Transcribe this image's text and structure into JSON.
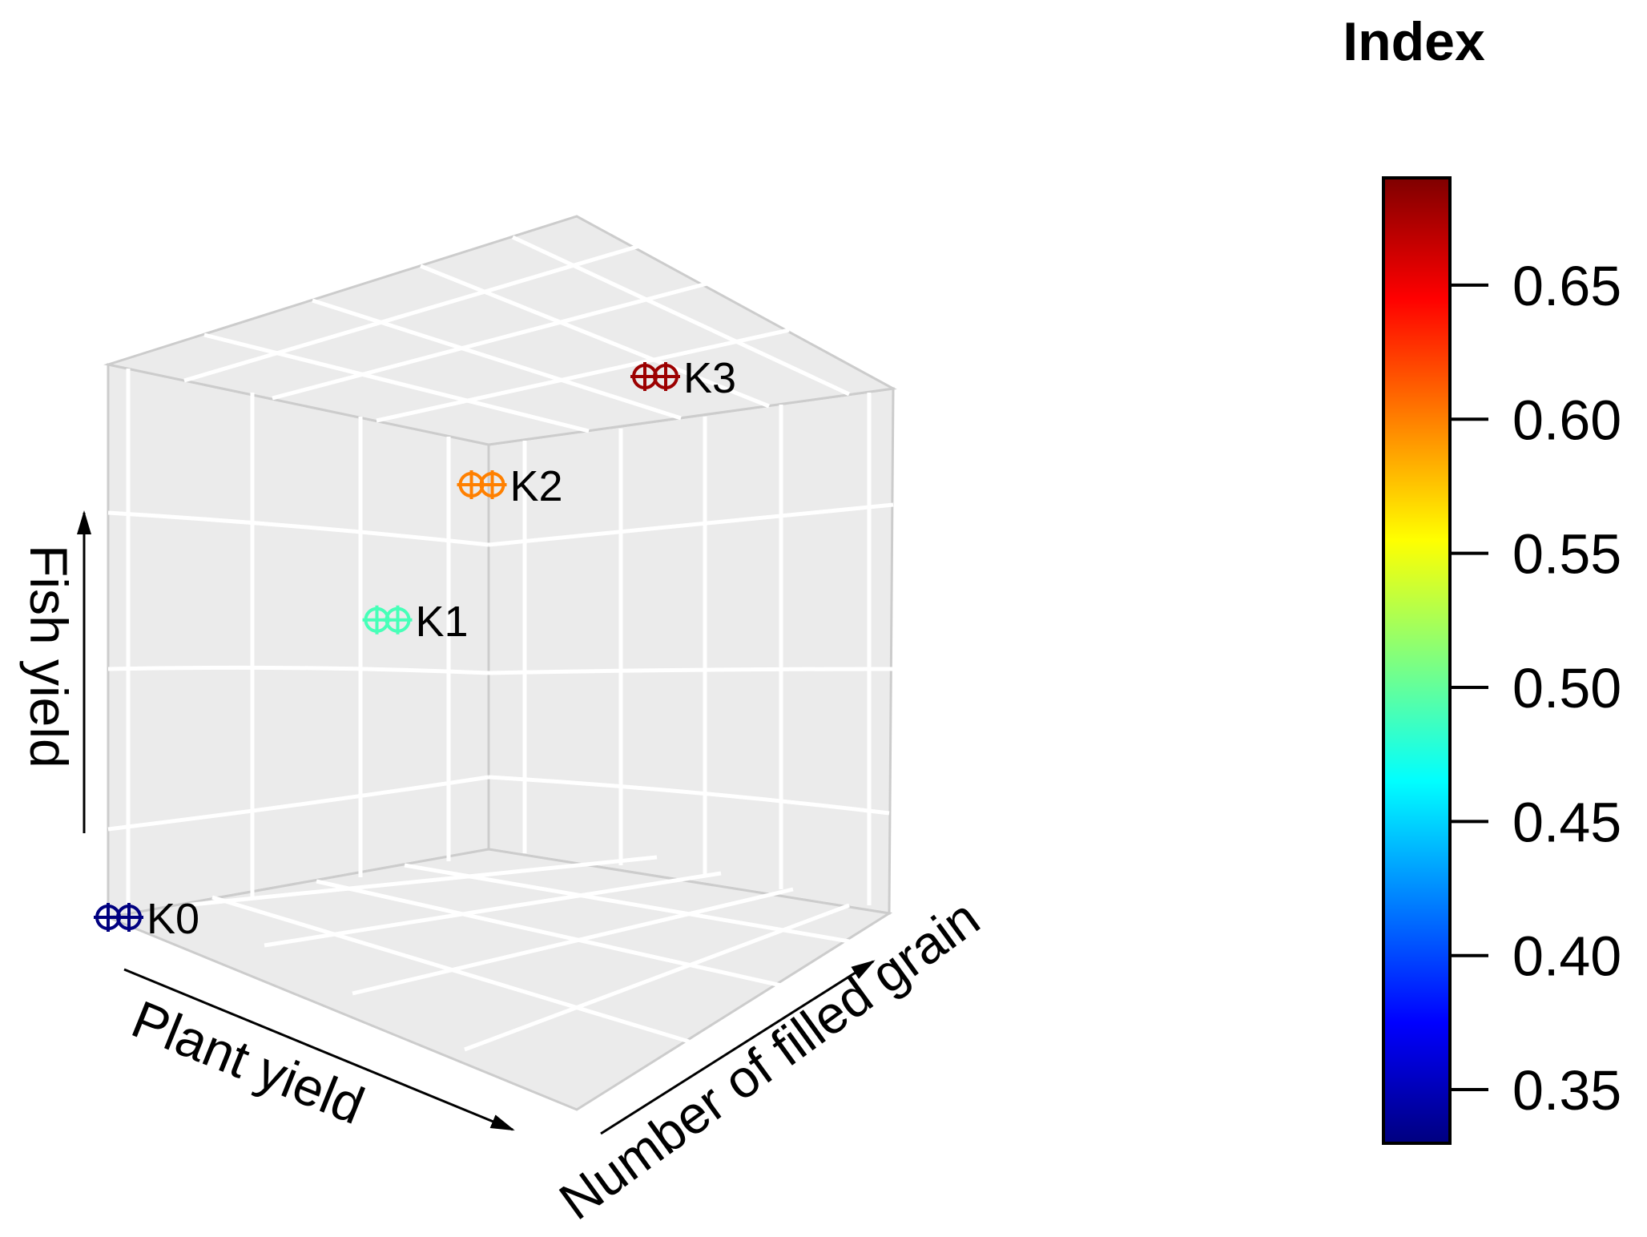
{
  "chart_data": {
    "type": "scatter",
    "subtype": "3d-scatter",
    "axes": {
      "x": {
        "label": "Plant yield"
      },
      "y": {
        "label": "Number of filled grain"
      },
      "z": {
        "label": "Fish yield"
      }
    },
    "points": [
      {
        "label": "K0",
        "x": 0,
        "y": 0,
        "z": 0,
        "index": 0.33
      },
      {
        "label": "K1",
        "x": 0.55,
        "y": 0.45,
        "z": 0.55,
        "index": 0.49
      },
      {
        "label": "K2",
        "x": 0.8,
        "y": 0.55,
        "z": 0.8,
        "index": 0.6
      },
      {
        "label": "K3",
        "x": 1,
        "y": 1,
        "z": 1,
        "index": 0.68
      }
    ],
    "colorbar": {
      "title": "Index",
      "range": [
        0.33,
        0.69
      ],
      "ticks": [
        "0.35",
        "0.40",
        "0.45",
        "0.50",
        "0.55",
        "0.60",
        "0.65"
      ],
      "palette": "jet"
    },
    "grid": true,
    "panel_color": "#ebebeb"
  }
}
